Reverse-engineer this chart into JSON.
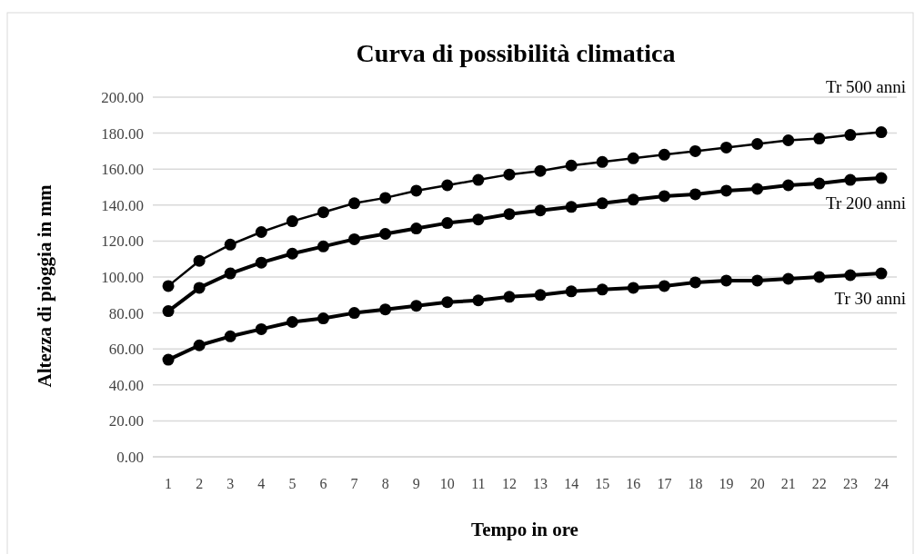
{
  "chart_data": {
    "type": "line",
    "title": "Curva di possibilità climatica",
    "xlabel": "Tempo in ore",
    "ylabel": "Altezza di pioggia in mm",
    "x": [
      1,
      2,
      3,
      4,
      5,
      6,
      7,
      8,
      9,
      10,
      11,
      12,
      13,
      14,
      15,
      16,
      17,
      18,
      19,
      20,
      21,
      22,
      23,
      24
    ],
    "xlim": [
      0.5,
      24.5
    ],
    "xticks": [
      1,
      2,
      3,
      4,
      5,
      6,
      7,
      8,
      9,
      10,
      11,
      12,
      13,
      14,
      15,
      16,
      17,
      18,
      19,
      20,
      21,
      22,
      23,
      24
    ],
    "series": [
      {
        "name": "Tr 500 anni",
        "color": "#000000",
        "values": [
          95,
          109,
          118,
          125,
          131,
          136,
          141,
          144,
          148,
          151,
          154,
          157,
          159,
          162,
          164,
          166,
          168,
          170,
          172,
          174,
          176,
          177,
          179,
          180.5
        ]
      },
      {
        "name": "Tr 200 anni",
        "color": "#000000",
        "values": [
          81,
          94,
          102,
          108,
          113,
          117,
          121,
          124,
          127,
          130,
          132,
          135,
          137,
          139,
          141,
          143,
          145,
          146,
          148,
          149,
          151,
          152,
          154,
          155
        ]
      },
      {
        "name": "Tr 30 anni",
        "color": "#000000",
        "values": [
          54,
          62,
          67,
          71,
          75,
          77,
          80,
          82,
          84,
          86,
          87,
          89,
          90,
          92,
          93,
          94,
          95,
          97,
          98,
          98,
          99,
          100,
          101,
          102
        ]
      }
    ],
    "ylim": [
      0,
      200
    ],
    "yticks": [
      {
        "value": 0,
        "label": "0.00"
      },
      {
        "value": 20,
        "label": "20.00"
      },
      {
        "value": 40,
        "label": "40.00"
      },
      {
        "value": 60,
        "label": "60.00"
      },
      {
        "value": 80,
        "label": "80.00"
      },
      {
        "value": 100,
        "label": "100.00"
      },
      {
        "value": 120,
        "label": "120.00"
      },
      {
        "value": 140,
        "label": "140.00"
      },
      {
        "value": 160,
        "label": "160.00"
      },
      {
        "value": 180,
        "label": "180.00"
      },
      {
        "value": 200,
        "label": "200.00"
      }
    ],
    "grid": "y",
    "marker": "circle",
    "line_style": "solid"
  }
}
